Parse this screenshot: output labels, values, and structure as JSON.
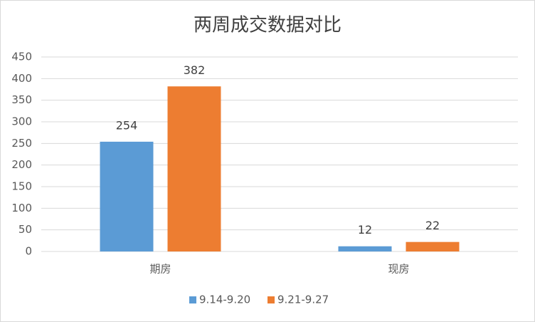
{
  "chart_data": {
    "type": "bar",
    "title": "两周成交数据对比",
    "categories": [
      "期房",
      "现房"
    ],
    "series": [
      {
        "name": "9.14-9.20",
        "color": "#5b9bd5",
        "values": [
          254,
          12
        ]
      },
      {
        "name": "9.21-9.27",
        "color": "#ed7d31",
        "values": [
          382,
          22
        ]
      }
    ],
    "ylim": [
      0,
      450
    ],
    "yticks": [
      0,
      50,
      100,
      150,
      200,
      250,
      300,
      350,
      400,
      450
    ],
    "grid": true
  }
}
